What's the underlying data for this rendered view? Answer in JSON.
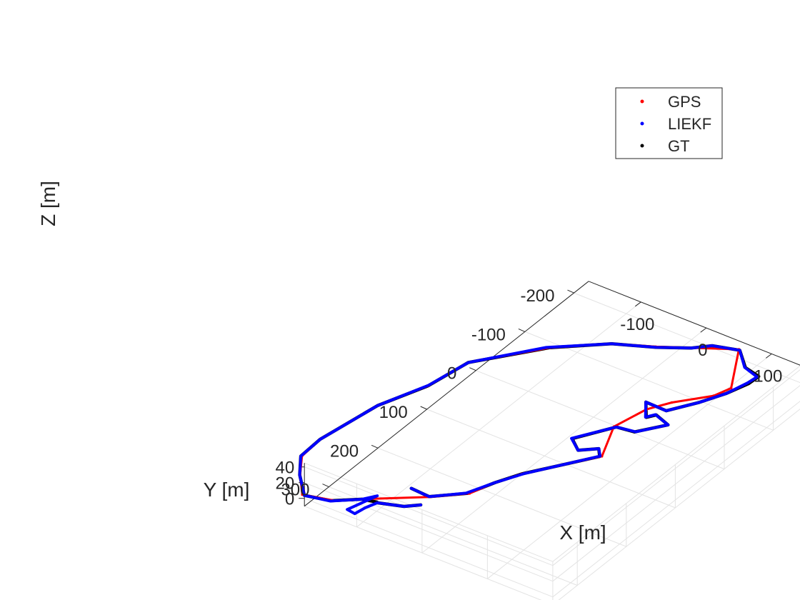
{
  "chart_data": {
    "type": "line3d",
    "title": "",
    "xlabel": "X [m]",
    "ylabel": "Y [m]",
    "zlabel": "Z [m]",
    "xlim": [
      -180,
      200
    ],
    "ylim": [
      -230,
      350
    ],
    "zlim": [
      -10,
      45
    ],
    "x_ticks": [
      -100,
      0,
      100
    ],
    "y_ticks": [
      -200,
      -100,
      0,
      100,
      200,
      300
    ],
    "z_ticks": [
      0,
      20,
      40
    ],
    "grid": true,
    "legend_position": "top-right",
    "series": [
      {
        "name": "GPS",
        "color": "#ff0000",
        "marker": "dot",
        "points": [
          [
            -115,
            308
          ],
          [
            -54,
            262
          ],
          [
            -18,
            229
          ],
          [
            -6,
            193
          ],
          [
            10,
            160
          ],
          [
            69,
            75
          ],
          [
            43,
            16
          ],
          [
            54,
            -36
          ],
          [
            71,
            -65
          ],
          [
            105,
            -105
          ],
          [
            113,
            -130
          ],
          [
            71,
            -202
          ],
          [
            -17,
            -150
          ],
          [
            -66,
            -125
          ],
          [
            -124,
            -76
          ],
          [
            -188,
            5
          ],
          [
            -199,
            73
          ],
          [
            -225,
            141
          ],
          [
            -240,
            238
          ],
          [
            -237,
            279
          ],
          [
            -215,
            312
          ],
          [
            -187,
            345
          ],
          [
            -149,
            334
          ]
        ]
      },
      {
        "name": "LIEKF",
        "color": "#0000ff",
        "marker": "dot",
        "points": [
          [
            -84,
            260
          ],
          [
            -55,
            262
          ],
          [
            -22,
            231
          ],
          [
            -6,
            193
          ],
          [
            12,
            158
          ],
          [
            67,
            76
          ],
          [
            56,
            64
          ],
          [
            37,
            81
          ],
          [
            15,
            65
          ],
          [
            46,
            15
          ],
          [
            72,
            10
          ],
          [
            96,
            -24
          ],
          [
            70,
            -33
          ],
          [
            63,
            -22
          ],
          [
            44,
            -48
          ],
          [
            76,
            -47
          ],
          [
            99,
            -84
          ],
          [
            115,
            -118
          ],
          [
            123,
            -150
          ],
          [
            125,
            -167
          ],
          [
            100,
            -175
          ],
          [
            73,
            -201
          ],
          [
            39,
            -190
          ],
          [
            21,
            -172
          ],
          [
            -16,
            -149
          ],
          [
            -66,
            -125
          ],
          [
            -128,
            -74
          ],
          [
            -188,
            5
          ],
          [
            -199,
            71
          ],
          [
            -225,
            141
          ],
          [
            -240,
            238
          ],
          [
            -238,
            280
          ],
          [
            -215,
            313
          ],
          [
            -184,
            345
          ],
          [
            -150,
            337
          ],
          [
            -120,
            312
          ],
          [
            -109,
            296
          ],
          [
            -122,
            340
          ],
          [
            -109,
            342
          ],
          [
            -106,
            325
          ],
          [
            -100,
            308
          ],
          [
            -68,
            296
          ],
          [
            -53,
            282
          ]
        ]
      },
      {
        "name": "GT",
        "color": "#000000",
        "marker": "dot",
        "points": [
          [
            -84,
            260
          ],
          [
            -55,
            262
          ],
          [
            -20,
            230
          ],
          [
            -6,
            193
          ],
          [
            10,
            160
          ],
          [
            67,
            77
          ],
          [
            56,
            64
          ],
          [
            37,
            81
          ],
          [
            16,
            65
          ],
          [
            46,
            15
          ],
          [
            71,
            11
          ],
          [
            96,
            -24
          ],
          [
            71,
            -33
          ],
          [
            64,
            -22
          ],
          [
            44,
            -48
          ],
          [
            76,
            -47
          ],
          [
            99,
            -84
          ],
          [
            115,
            -118
          ],
          [
            125,
            -150
          ],
          [
            126,
            -169
          ],
          [
            101,
            -175
          ],
          [
            73,
            -201
          ],
          [
            39,
            -190
          ],
          [
            21,
            -172
          ],
          [
            -16,
            -149
          ],
          [
            -66,
            -125
          ],
          [
            -124,
            -76
          ],
          [
            -188,
            5
          ],
          [
            -199,
            73
          ],
          [
            -225,
            141
          ],
          [
            -240,
            238
          ],
          [
            -238,
            280
          ],
          [
            -215,
            313
          ],
          [
            -184,
            345
          ],
          [
            -150,
            336
          ],
          [
            -120,
            312
          ],
          [
            -101,
            307
          ],
          [
            -100,
            308
          ],
          [
            -68,
            296
          ],
          [
            -53,
            282
          ]
        ]
      }
    ]
  }
}
